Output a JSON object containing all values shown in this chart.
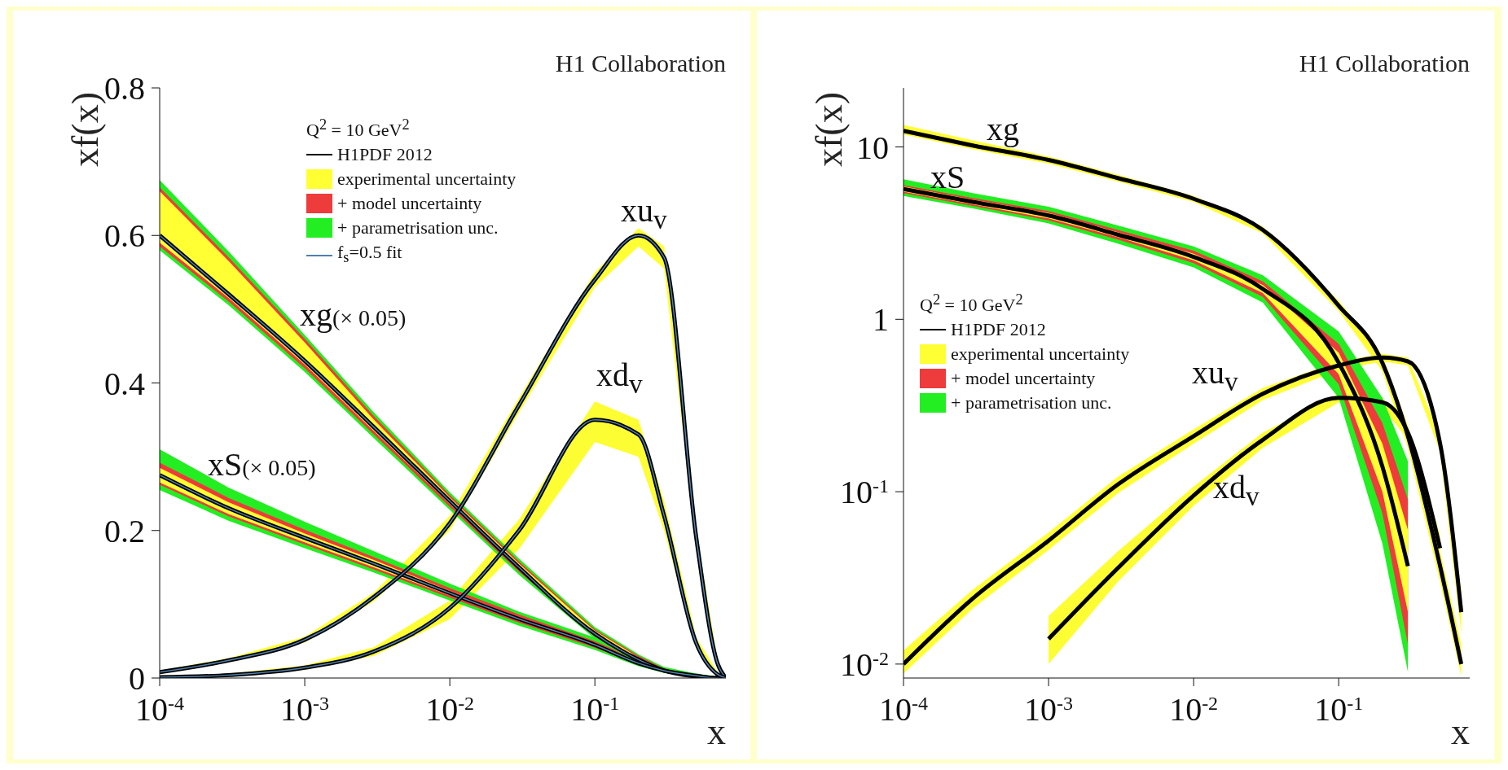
{
  "chart_data": [
    {
      "type": "line",
      "title": "H1 Collaboration",
      "xlabel": "x",
      "ylabel": "xf(x)",
      "legend": "top",
      "legend_title": "Q$^{2}$ = 10 GeV$^{2}$",
      "log": "x",
      "xlim": [
        0.0001,
        0.8
      ],
      "xticks": [
        {
          "value": 0.0001,
          "label": "10$^{-4}$"
        },
        {
          "value": 0.001,
          "label": "10$^{-3}$"
        },
        {
          "value": 0.01,
          "label": "10$^{-2}$"
        },
        {
          "value": 0.1,
          "label": "10$^{-1}$"
        }
      ],
      "ylim": [
        0,
        0.8
      ],
      "yticks": [
        0,
        0.2,
        0.4,
        0.6,
        0.8
      ],
      "annotations": [
        "xg(× 0.05)",
        "xS(× 0.05)",
        "xu$_{v}$",
        "xd$_{v}$"
      ],
      "series": [
        {
          "name": "H1PDF 2012",
          "color": "#000000",
          "x": [
            0.0001,
            0.0003,
            0.001,
            0.003,
            0.01,
            0.03,
            0.1,
            0.2,
            0.3,
            0.5,
            0.7,
            0.8
          ],
          "values": [
            0.6,
            0.52,
            0.43,
            0.34,
            0.24,
            0.15,
            0.06,
            0.025,
            0.01,
            0.002,
            0,
            0
          ]
        },
        {
          "name": "experimental uncertainty",
          "color": "#ffff33",
          "x": [
            0.0001,
            0.0003,
            0.001,
            0.003,
            0.01,
            0.03,
            0.1,
            0.2,
            0.3,
            0.5,
            0.7,
            0.8
          ],
          "values": [
            null,
            null,
            null,
            null,
            null,
            null,
            null,
            null,
            null,
            null,
            null,
            null
          ],
          "lower": [
            0.59,
            0.515,
            0.425,
            0.335,
            0.236,
            0.147,
            0.058,
            0.024,
            0.009,
            0.002,
            0,
            0
          ],
          "upper": [
            0.66,
            0.565,
            0.455,
            0.35,
            0.245,
            0.155,
            0.064,
            0.028,
            0.012,
            0.003,
            0.001,
            0
          ]
        },
        {
          "name": "+ model uncertainty",
          "color": "#ee3b3b",
          "x": [
            0.0001,
            0.0003,
            0.001,
            0.003,
            0.01,
            0.03,
            0.1,
            0.2,
            0.3,
            0.5,
            0.7,
            0.8
          ],
          "values": [
            null,
            null,
            null,
            null,
            null,
            null,
            null,
            null,
            null,
            null,
            null,
            null
          ],
          "lower": [
            0.585,
            0.51,
            0.42,
            0.33,
            0.232,
            0.144,
            0.056,
            0.022,
            0.008,
            0.001,
            0,
            0
          ],
          "upper": [
            0.665,
            0.57,
            0.46,
            0.355,
            0.248,
            0.158,
            0.066,
            0.03,
            0.013,
            0.004,
            0.001,
            0
          ]
        },
        {
          "name": "+ parametrisation unc.",
          "color": "#22ee22",
          "x": [
            0.0001,
            0.0003,
            0.001,
            0.003,
            0.01,
            0.03,
            0.1,
            0.2,
            0.3,
            0.5,
            0.7,
            0.8
          ],
          "values": [
            null,
            null,
            null,
            null,
            null,
            null,
            null,
            null,
            null,
            null,
            null,
            null
          ],
          "lower": [
            0.58,
            0.505,
            0.415,
            0.325,
            0.228,
            0.14,
            0.053,
            0.02,
            0.007,
            0.001,
            0,
            0
          ],
          "upper": [
            0.675,
            0.578,
            0.465,
            0.36,
            0.252,
            0.162,
            0.069,
            0.032,
            0.015,
            0.005,
            0.002,
            0
          ]
        },
        {
          "name": "f$_{s}$=0.5 fit",
          "color": "#4f7fae",
          "x": [
            0.0001,
            0.0003,
            0.001,
            0.003,
            0.01,
            0.03,
            0.1,
            0.2,
            0.3,
            0.5,
            0.7,
            0.8
          ],
          "values": [
            0.6,
            0.52,
            0.43,
            0.34,
            0.24,
            0.15,
            0.06,
            0.025,
            0.01,
            0.002,
            0,
            0
          ]
        },
        {
          "color": "#000000",
          "x": [
            0.0001,
            0.0003,
            0.001,
            0.003,
            0.01,
            0.03,
            0.1,
            0.2,
            0.3,
            0.5,
            0.7,
            0.8
          ],
          "values": [
            0.275,
            0.23,
            0.19,
            0.155,
            0.115,
            0.08,
            0.045,
            0.02,
            0.01,
            0.003,
            0,
            0
          ]
        },
        {
          "color": "#fefe33",
          "x": [
            0.0001,
            0.0003,
            0.001,
            0.003,
            0.01,
            0.03,
            0.1,
            0.2,
            0.3,
            0.5,
            0.7,
            0.8
          ],
          "values": [
            null,
            null,
            null,
            null,
            null,
            null,
            null,
            null,
            null,
            null,
            null,
            null
          ],
          "lower": [
            0.265,
            0.222,
            0.184,
            0.15,
            0.112,
            0.078,
            0.043,
            0.019,
            0.009,
            0.002,
            0,
            0
          ],
          "upper": [
            0.285,
            0.238,
            0.196,
            0.16,
            0.118,
            0.082,
            0.047,
            0.021,
            0.011,
            0.004,
            0.001,
            0
          ]
        },
        {
          "color": "#ed3b3b",
          "x": [
            0.0001,
            0.0003,
            0.001,
            0.003,
            0.01,
            0.03,
            0.1,
            0.2,
            0.3,
            0.5,
            0.7,
            0.8
          ],
          "values": [
            null,
            null,
            null,
            null,
            null,
            null,
            null,
            null,
            null,
            null,
            null,
            null
          ],
          "lower": [
            0.262,
            0.219,
            0.181,
            0.147,
            0.109,
            0.075,
            0.041,
            0.018,
            0.008,
            0.002,
            0,
            0
          ],
          "upper": [
            0.292,
            0.244,
            0.201,
            0.164,
            0.122,
            0.086,
            0.05,
            0.024,
            0.013,
            0.005,
            0.001,
            0
          ]
        },
        {
          "color": "#23ee22",
          "x": [
            0.0001,
            0.0003,
            0.001,
            0.003,
            0.01,
            0.03,
            0.1,
            0.2,
            0.3,
            0.5,
            0.7,
            0.8
          ],
          "values": [
            null,
            null,
            null,
            null,
            null,
            null,
            null,
            null,
            null,
            null,
            null,
            null
          ],
          "lower": [
            0.255,
            0.213,
            0.176,
            0.143,
            0.105,
            0.071,
            0.038,
            0.016,
            0.007,
            0.001,
            0,
            0
          ],
          "upper": [
            0.31,
            0.258,
            0.212,
            0.172,
            0.128,
            0.09,
            0.055,
            0.027,
            0.015,
            0.006,
            0.002,
            0
          ]
        },
        {
          "color": "#4f7fae",
          "x": [
            0.0001,
            0.0003,
            0.001,
            0.003,
            0.01,
            0.03,
            0.1,
            0.2,
            0.3,
            0.5,
            0.7,
            0.8
          ],
          "values": [
            0.275,
            0.23,
            0.19,
            0.155,
            0.115,
            0.08,
            0.045,
            0.02,
            0.01,
            0.003,
            0,
            0
          ]
        },
        {
          "color": "#000000",
          "x": [
            0.0001,
            0.0003,
            0.001,
            0.003,
            0.01,
            0.03,
            0.1,
            0.2,
            0.3,
            0.5,
            0.7,
            0.8
          ],
          "values": [
            0.008,
            0.024,
            0.052,
            0.11,
            0.21,
            0.37,
            0.54,
            0.6,
            0.57,
            0.19,
            0.02,
            0
          ]
        },
        {
          "color": "#ffff35",
          "x": [
            0.0001,
            0.0003,
            0.001,
            0.003,
            0.01,
            0.03,
            0.1,
            0.2,
            0.3,
            0.5,
            0.7,
            0.8
          ],
          "values": [
            null,
            null,
            null,
            null,
            null,
            null,
            null,
            null,
            null,
            null,
            null,
            null
          ],
          "lower": [
            0.007,
            0.022,
            0.048,
            0.104,
            0.2,
            0.36,
            0.53,
            0.585,
            0.555,
            0.18,
            0.015,
            0
          ],
          "upper": [
            0.01,
            0.027,
            0.056,
            0.116,
            0.22,
            0.38,
            0.55,
            0.61,
            0.585,
            0.2,
            0.025,
            0
          ]
        },
        {
          "color": "#4f7fae",
          "x": [
            0.0001,
            0.0003,
            0.001,
            0.003,
            0.01,
            0.03,
            0.1,
            0.2,
            0.3,
            0.5,
            0.7,
            0.8
          ],
          "values": [
            0.008,
            0.024,
            0.052,
            0.11,
            0.21,
            0.37,
            0.54,
            0.6,
            0.57,
            0.19,
            0.02,
            0
          ]
        },
        {
          "color": "#000000",
          "x": [
            0.0001,
            0.0003,
            0.001,
            0.003,
            0.01,
            0.03,
            0.1,
            0.2,
            0.3,
            0.5,
            0.7,
            0.8
          ],
          "values": [
            0.001,
            0.004,
            0.014,
            0.036,
            0.095,
            0.2,
            0.35,
            0.33,
            0.22,
            0.047,
            0.005,
            0
          ]
        },
        {
          "color": "#fdfd33",
          "x": [
            0.0001,
            0.0003,
            0.001,
            0.003,
            0.01,
            0.03,
            0.1,
            0.2,
            0.3,
            0.5,
            0.7,
            0.8
          ],
          "values": [
            null,
            null,
            null,
            null,
            null,
            null,
            null,
            null,
            null,
            null,
            null,
            null
          ],
          "lower": [
            0,
            0.003,
            0.011,
            0.03,
            0.08,
            0.175,
            0.32,
            0.3,
            0.2,
            0.04,
            0.003,
            0
          ],
          "upper": [
            0.002,
            0.006,
            0.017,
            0.042,
            0.105,
            0.215,
            0.375,
            0.35,
            0.24,
            0.055,
            0.008,
            0
          ]
        },
        {
          "color": "#4f7fae",
          "x": [
            0.0001,
            0.0003,
            0.001,
            0.003,
            0.01,
            0.03,
            0.1,
            0.2,
            0.3,
            0.5,
            0.7,
            0.8
          ],
          "values": [
            0.001,
            0.004,
            0.014,
            0.036,
            0.095,
            0.2,
            0.35,
            0.33,
            0.22,
            0.047,
            0.005,
            0
          ]
        }
      ]
    },
    {
      "type": "line",
      "title": "H1 Collaboration",
      "xlabel": "x",
      "ylabel": "xf(x)",
      "legend": "left",
      "legend_title": "Q$^{2}$ = 10 GeV$^{2}$",
      "log": "xy",
      "xlim": [
        0.0001,
        0.8
      ],
      "xticks": [
        {
          "value": 0.0001,
          "label": "10$^{-4}$"
        },
        {
          "value": 0.001,
          "label": "10$^{-3}$"
        },
        {
          "value": 0.01,
          "label": "10$^{-2}$"
        },
        {
          "value": 0.1,
          "label": "10$^{-1}$"
        }
      ],
      "ylim": [
        0.0083,
        22
      ],
      "yticks": [
        {
          "value": 0.01,
          "label": "10$^{-2}$"
        },
        {
          "value": 0.1,
          "label": "10$^{-1}$"
        },
        1,
        10
      ],
      "annotations": [
        "xg",
        "xS",
        "xu$_{v}$",
        "xd$_{v}$"
      ],
      "series": [
        {
          "name": "H1PDF 2012",
          "color": "#000000",
          "x": [
            0.0001,
            0.0003,
            0.001,
            0.003,
            0.01,
            0.03,
            0.1,
            0.2,
            0.3
          ],
          "values": [
            5.7,
            4.8,
            4.0,
            3.1,
            2.3,
            1.5,
            0.56,
            0.14,
            0.037
          ]
        },
        {
          "name": "experimental uncertainty",
          "color": "#ffff33",
          "x": [
            0.0001,
            0.0003,
            0.001,
            0.003,
            0.01,
            0.03,
            0.1,
            0.2,
            0.3
          ],
          "values": [
            null,
            null,
            null,
            null,
            null,
            null,
            null,
            null,
            null
          ],
          "lower": [
            5.5,
            4.65,
            3.85,
            3.0,
            2.2,
            1.42,
            0.48,
            0.1,
            0.02
          ],
          "upper": [
            5.9,
            4.95,
            4.15,
            3.2,
            2.4,
            1.58,
            0.64,
            0.19,
            0.06
          ]
        },
        {
          "name": "+ model uncertainty",
          "color": "#ee3b3b",
          "x": [
            0.0001,
            0.0003,
            0.001,
            0.003,
            0.01,
            0.03,
            0.1,
            0.2,
            0.3
          ],
          "values": [
            null,
            null,
            null,
            null,
            null,
            null,
            null,
            null,
            null
          ],
          "lower": [
            5.4,
            4.55,
            3.75,
            2.9,
            2.12,
            1.35,
            0.42,
            0.075,
            0.013
          ],
          "upper": [
            6.0,
            5.05,
            4.25,
            3.3,
            2.5,
            1.66,
            0.72,
            0.25,
            0.09
          ]
        },
        {
          "name": "+ parametrisation unc.",
          "color": "#22ee22",
          "x": [
            0.0001,
            0.0003,
            0.001,
            0.003,
            0.01,
            0.03,
            0.1,
            0.2,
            0.3
          ],
          "values": [
            null,
            null,
            null,
            null,
            null,
            null,
            null,
            null,
            null
          ],
          "lower": [
            5.2,
            4.4,
            3.6,
            2.75,
            2.0,
            1.25,
            0.35,
            0.05,
            0.009
          ],
          "upper": [
            6.5,
            5.4,
            4.5,
            3.5,
            2.65,
            1.8,
            0.85,
            0.35,
            0.15
          ]
        },
        {
          "color": "#000000",
          "x": [
            0.0001,
            0.0003,
            0.001,
            0.003,
            0.01,
            0.03,
            0.1,
            0.2,
            0.3,
            0.5,
            0.7
          ],
          "values": [
            12.4,
            10.2,
            8.4,
            6.6,
            5.0,
            3.3,
            1.2,
            0.56,
            0.21,
            0.037,
            0.01
          ]
        },
        {
          "color": "#fefe33",
          "x": [
            0.0001,
            0.0003,
            0.001,
            0.003,
            0.01,
            0.03,
            0.1,
            0.2,
            0.3,
            0.5,
            0.7
          ],
          "values": [
            null,
            null,
            null,
            null,
            null,
            null,
            null,
            null,
            null,
            null,
            null
          ],
          "lower": [
            11.8,
            9.7,
            8.0,
            6.3,
            4.8,
            3.15,
            1.12,
            0.5,
            0.18,
            0.03,
            0.0085
          ],
          "upper": [
            13.4,
            10.9,
            8.8,
            6.9,
            5.2,
            3.45,
            1.28,
            0.62,
            0.24,
            0.045,
            0.013
          ]
        },
        {
          "color": "#000000",
          "x": [
            0.0001,
            0.0003,
            0.001,
            0.003,
            0.01,
            0.03,
            0.1,
            0.2,
            0.3,
            0.5,
            0.7
          ],
          "values": [
            0.01,
            0.024,
            0.052,
            0.11,
            0.21,
            0.37,
            0.54,
            0.6,
            0.57,
            0.19,
            0.02
          ]
        },
        {
          "color": "#ffff35",
          "x": [
            0.0001,
            0.0003,
            0.001,
            0.003,
            0.01,
            0.03,
            0.1,
            0.2,
            0.3,
            0.5,
            0.7
          ],
          "values": [
            null,
            null,
            null,
            null,
            null,
            null,
            null,
            null,
            null,
            null,
            null
          ],
          "lower": [
            0.0088,
            0.021,
            0.046,
            0.098,
            0.19,
            0.34,
            0.51,
            0.57,
            0.54,
            0.17,
            0.015
          ],
          "upper": [
            0.012,
            0.027,
            0.058,
            0.122,
            0.23,
            0.4,
            0.57,
            0.63,
            0.6,
            0.21,
            0.026
          ]
        },
        {
          "color": "#000000",
          "x": [
            0.001,
            0.003,
            0.01,
            0.03,
            0.1,
            0.2,
            0.3,
            0.5
          ],
          "values": [
            0.014,
            0.036,
            0.095,
            0.2,
            0.35,
            0.33,
            0.22,
            0.047
          ]
        },
        {
          "color": "#fdfd33",
          "x": [
            0.001,
            0.003,
            0.01,
            0.03,
            0.1,
            0.2,
            0.3,
            0.5
          ],
          "values": [
            null,
            null,
            null,
            null,
            null,
            null,
            null,
            null
          ],
          "lower": [
            0.01,
            0.03,
            0.083,
            0.18,
            0.33,
            0.31,
            0.2,
            0.038
          ],
          "upper": [
            0.019,
            0.045,
            0.107,
            0.22,
            0.37,
            0.35,
            0.24,
            0.056
          ]
        }
      ]
    }
  ]
}
